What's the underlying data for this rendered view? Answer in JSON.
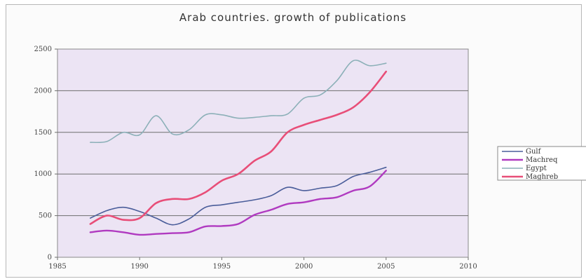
{
  "chart_data": {
    "type": "line",
    "title": "Arab countries. growth of publications",
    "xlabel": "",
    "ylabel": "",
    "xlim": [
      1985,
      2010
    ],
    "ylim": [
      0,
      2500
    ],
    "x_ticks": [
      "1985",
      "1990",
      "1995",
      "2000",
      "2005",
      "2010"
    ],
    "y_ticks": [
      "0",
      "500",
      "1000",
      "1500",
      "2000",
      "2500"
    ],
    "grid": "horizontal",
    "legend_position": "right",
    "x": [
      1987,
      1988,
      1989,
      1990,
      1991,
      1992,
      1993,
      1994,
      1995,
      1996,
      1997,
      1998,
      1999,
      2000,
      2001,
      2002,
      2003,
      2004,
      2005
    ],
    "series": [
      {
        "name": "Gulf",
        "color": "#4a5d9a",
        "values": [
          470,
          560,
          600,
          550,
          470,
          390,
          460,
          600,
          630,
          660,
          690,
          740,
          840,
          800,
          830,
          860,
          970,
          1020,
          1080
        ]
      },
      {
        "name": "Machreq",
        "color": "#b03ac0",
        "values": [
          300,
          320,
          300,
          270,
          280,
          290,
          300,
          370,
          375,
          400,
          510,
          570,
          640,
          660,
          700,
          720,
          800,
          850,
          1040
        ]
      },
      {
        "name": "Egypt",
        "color": "#8cb0b8",
        "values": [
          1380,
          1390,
          1500,
          1470,
          1700,
          1480,
          1530,
          1710,
          1710,
          1670,
          1680,
          1700,
          1720,
          1910,
          1950,
          2120,
          2360,
          2300,
          2330
        ]
      },
      {
        "name": "Maghreb",
        "color": "#e84e78",
        "values": [
          400,
          500,
          450,
          470,
          650,
          700,
          700,
          780,
          920,
          1000,
          1160,
          1270,
          1500,
          1590,
          1650,
          1710,
          1800,
          1980,
          2230
        ]
      }
    ],
    "legend_labels": [
      "Gulf",
      "Machreq",
      "Egypt",
      "Maghreb"
    ]
  }
}
